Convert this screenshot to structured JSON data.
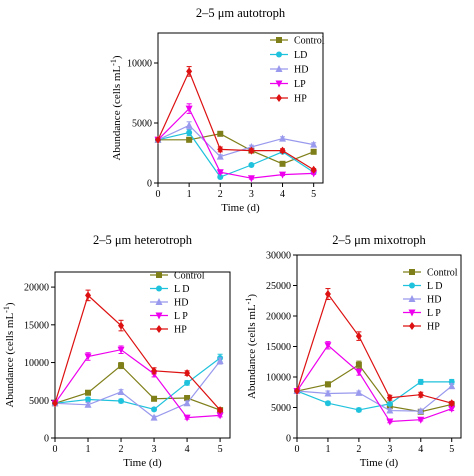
{
  "chart_data": [
    {
      "type": "line",
      "title": "2–5 μm autotroph",
      "xlabel": "Time (d)",
      "ylabel": "Abundance (cells mL",
      "ylabel_sup": "-1",
      "ylabel_close": ")",
      "xlim": [
        0,
        5.3
      ],
      "ylim": [
        0,
        12500
      ],
      "xticks": [
        "0",
        "1",
        "2",
        "3",
        "4",
        "5"
      ],
      "yticks": [
        "0",
        "5000",
        "10000"
      ],
      "ytick_values": [
        0,
        5000,
        10000
      ],
      "x": [
        0,
        1,
        2,
        3,
        4,
        5
      ],
      "series": [
        {
          "name": "Control",
          "color": "#7f7f1a",
          "marker": "square",
          "values": [
            3600,
            3600,
            4100,
            2700,
            1600,
            2600
          ],
          "err": [
            0,
            0,
            150,
            150,
            100,
            150
          ]
        },
        {
          "name": "LD",
          "color": "#1fc2dc",
          "marker": "circle",
          "values": [
            3600,
            4200,
            500,
            1500,
            2600,
            900
          ],
          "err": [
            0,
            250,
            100,
            100,
            100,
            100
          ]
        },
        {
          "name": "HD",
          "color": "#9999ee",
          "marker": "triangle-up",
          "values": [
            3600,
            4800,
            2200,
            3000,
            3700,
            3200
          ],
          "err": [
            0,
            300,
            150,
            150,
            150,
            150
          ]
        },
        {
          "name": "LP",
          "color": "#ee00ee",
          "marker": "triangle-down",
          "values": [
            3600,
            6200,
            900,
            400,
            700,
            800
          ],
          "err": [
            0,
            400,
            100,
            80,
            80,
            80
          ]
        },
        {
          "name": "HP",
          "color": "#dd1111",
          "marker": "diamond",
          "values": [
            3600,
            9300,
            2800,
            2700,
            2700,
            1100
          ],
          "err": [
            0,
            400,
            200,
            150,
            150,
            100
          ]
        }
      ],
      "legend": "right"
    },
    {
      "type": "line",
      "title": "2–5 μm heterotroph",
      "xlabel": "Time (d)",
      "ylabel": "Abundance (cells mL",
      "ylabel_sup": "-1",
      "ylabel_close": ")",
      "xlim": [
        0,
        5.3
      ],
      "ylim": [
        0,
        22000
      ],
      "xticks": [
        "0",
        "1",
        "2",
        "3",
        "4",
        "5"
      ],
      "yticks": [
        "0",
        "5000",
        "10000",
        "15000",
        "20000"
      ],
      "ytick_values": [
        0,
        5000,
        10000,
        15000,
        20000
      ],
      "x": [
        0,
        1,
        2,
        3,
        4,
        5
      ],
      "series": [
        {
          "name": "Control",
          "color": "#7f7f1a",
          "marker": "square",
          "values": [
            4600,
            6000,
            9600,
            5200,
            5300,
            3700
          ],
          "err": [
            0,
            200,
            400,
            300,
            300,
            200
          ]
        },
        {
          "name": "L D",
          "color": "#1fc2dc",
          "marker": "circle",
          "values": [
            4600,
            5100,
            4900,
            3800,
            7300,
            10600
          ],
          "err": [
            0,
            300,
            250,
            200,
            300,
            500
          ]
        },
        {
          "name": "HD",
          "color": "#9999ee",
          "marker": "triangle-up",
          "values": [
            4600,
            4400,
            6100,
            2700,
            4600,
            10200
          ],
          "err": [
            0,
            300,
            300,
            200,
            300,
            400
          ]
        },
        {
          "name": "L P",
          "color": "#ee00ee",
          "marker": "triangle-down",
          "values": [
            4600,
            10800,
            11700,
            8500,
            2700,
            3000
          ],
          "err": [
            0,
            500,
            500,
            400,
            200,
            200
          ]
        },
        {
          "name": "HP",
          "color": "#dd1111",
          "marker": "diamond",
          "values": [
            4600,
            18900,
            14900,
            8900,
            8600,
            3700
          ],
          "err": [
            0,
            700,
            700,
            400,
            300,
            200
          ]
        }
      ],
      "legend": "right"
    },
    {
      "type": "line",
      "title": "2–5 μm mixotroph",
      "xlabel": "Time (d)",
      "ylabel": "Abundance (cells mL",
      "ylabel_sup": "-1",
      "ylabel_close": ")",
      "xlim": [
        0,
        5.3
      ],
      "ylim": [
        0,
        30000
      ],
      "xticks": [
        "0",
        "1",
        "2",
        "3",
        "4",
        "5"
      ],
      "yticks": [
        "0",
        "5000",
        "10000",
        "15000",
        "20000",
        "25000",
        "30000"
      ],
      "ytick_values": [
        0,
        5000,
        10000,
        15000,
        20000,
        25000,
        30000
      ],
      "x": [
        0,
        1,
        2,
        3,
        4,
        5
      ],
      "series": [
        {
          "name": "Control",
          "color": "#7f7f1a",
          "marker": "square",
          "values": [
            7700,
            8800,
            12000,
            5200,
            4300,
            5500
          ],
          "err": [
            0,
            400,
            600,
            300,
            300,
            300
          ]
        },
        {
          "name": "L D",
          "color": "#1fc2dc",
          "marker": "circle",
          "values": [
            7700,
            5700,
            4600,
            5600,
            9200,
            9200
          ],
          "err": [
            0,
            300,
            300,
            300,
            400,
            400
          ]
        },
        {
          "name": "HD",
          "color": "#9999ee",
          "marker": "triangle-up",
          "values": [
            7700,
            7300,
            7400,
            4500,
            4400,
            8500
          ],
          "err": [
            0,
            400,
            300,
            300,
            300,
            400
          ]
        },
        {
          "name": "L P",
          "color": "#ee00ee",
          "marker": "triangle-down",
          "values": [
            7700,
            15200,
            10800,
            2700,
            3000,
            4800
          ],
          "err": [
            0,
            600,
            500,
            200,
            200,
            300
          ]
        },
        {
          "name": "HP",
          "color": "#dd1111",
          "marker": "diamond",
          "values": [
            7700,
            23600,
            16700,
            6600,
            7100,
            5700
          ],
          "err": [
            0,
            900,
            700,
            400,
            400,
            300
          ]
        }
      ],
      "legend": "right"
    }
  ]
}
